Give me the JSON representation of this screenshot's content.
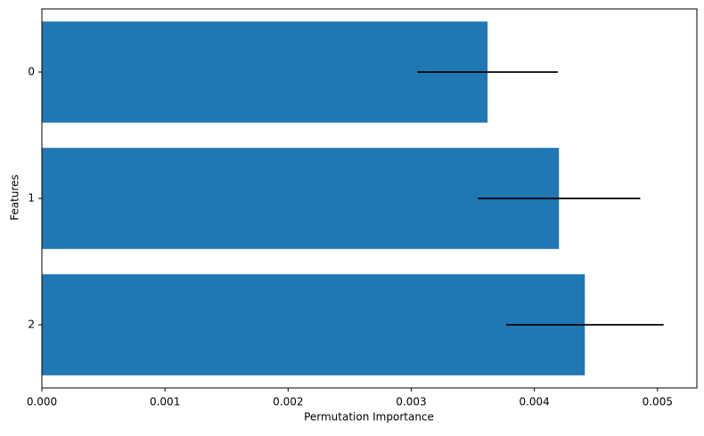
{
  "chart_data": {
    "type": "barh",
    "xlabel": "Permutation Importance",
    "ylabel": "Features",
    "categories": [
      "0",
      "1",
      "2"
    ],
    "values": [
      0.00362,
      0.0042,
      0.00441
    ],
    "errors": [
      0.00057,
      0.00066,
      0.00064
    ],
    "color": "#1f77b4",
    "error_color": "#000000",
    "xlim": [
      0,
      0.00532
    ],
    "xticks": [
      {
        "value": 0,
        "label": "0.000"
      },
      {
        "value": 0.001,
        "label": "0.001"
      },
      {
        "value": 0.002,
        "label": "0.002"
      },
      {
        "value": 0.003,
        "label": "0.003"
      },
      {
        "value": 0.004,
        "label": "0.004"
      },
      {
        "value": 0.005,
        "label": "0.005"
      }
    ],
    "grid": false
  }
}
